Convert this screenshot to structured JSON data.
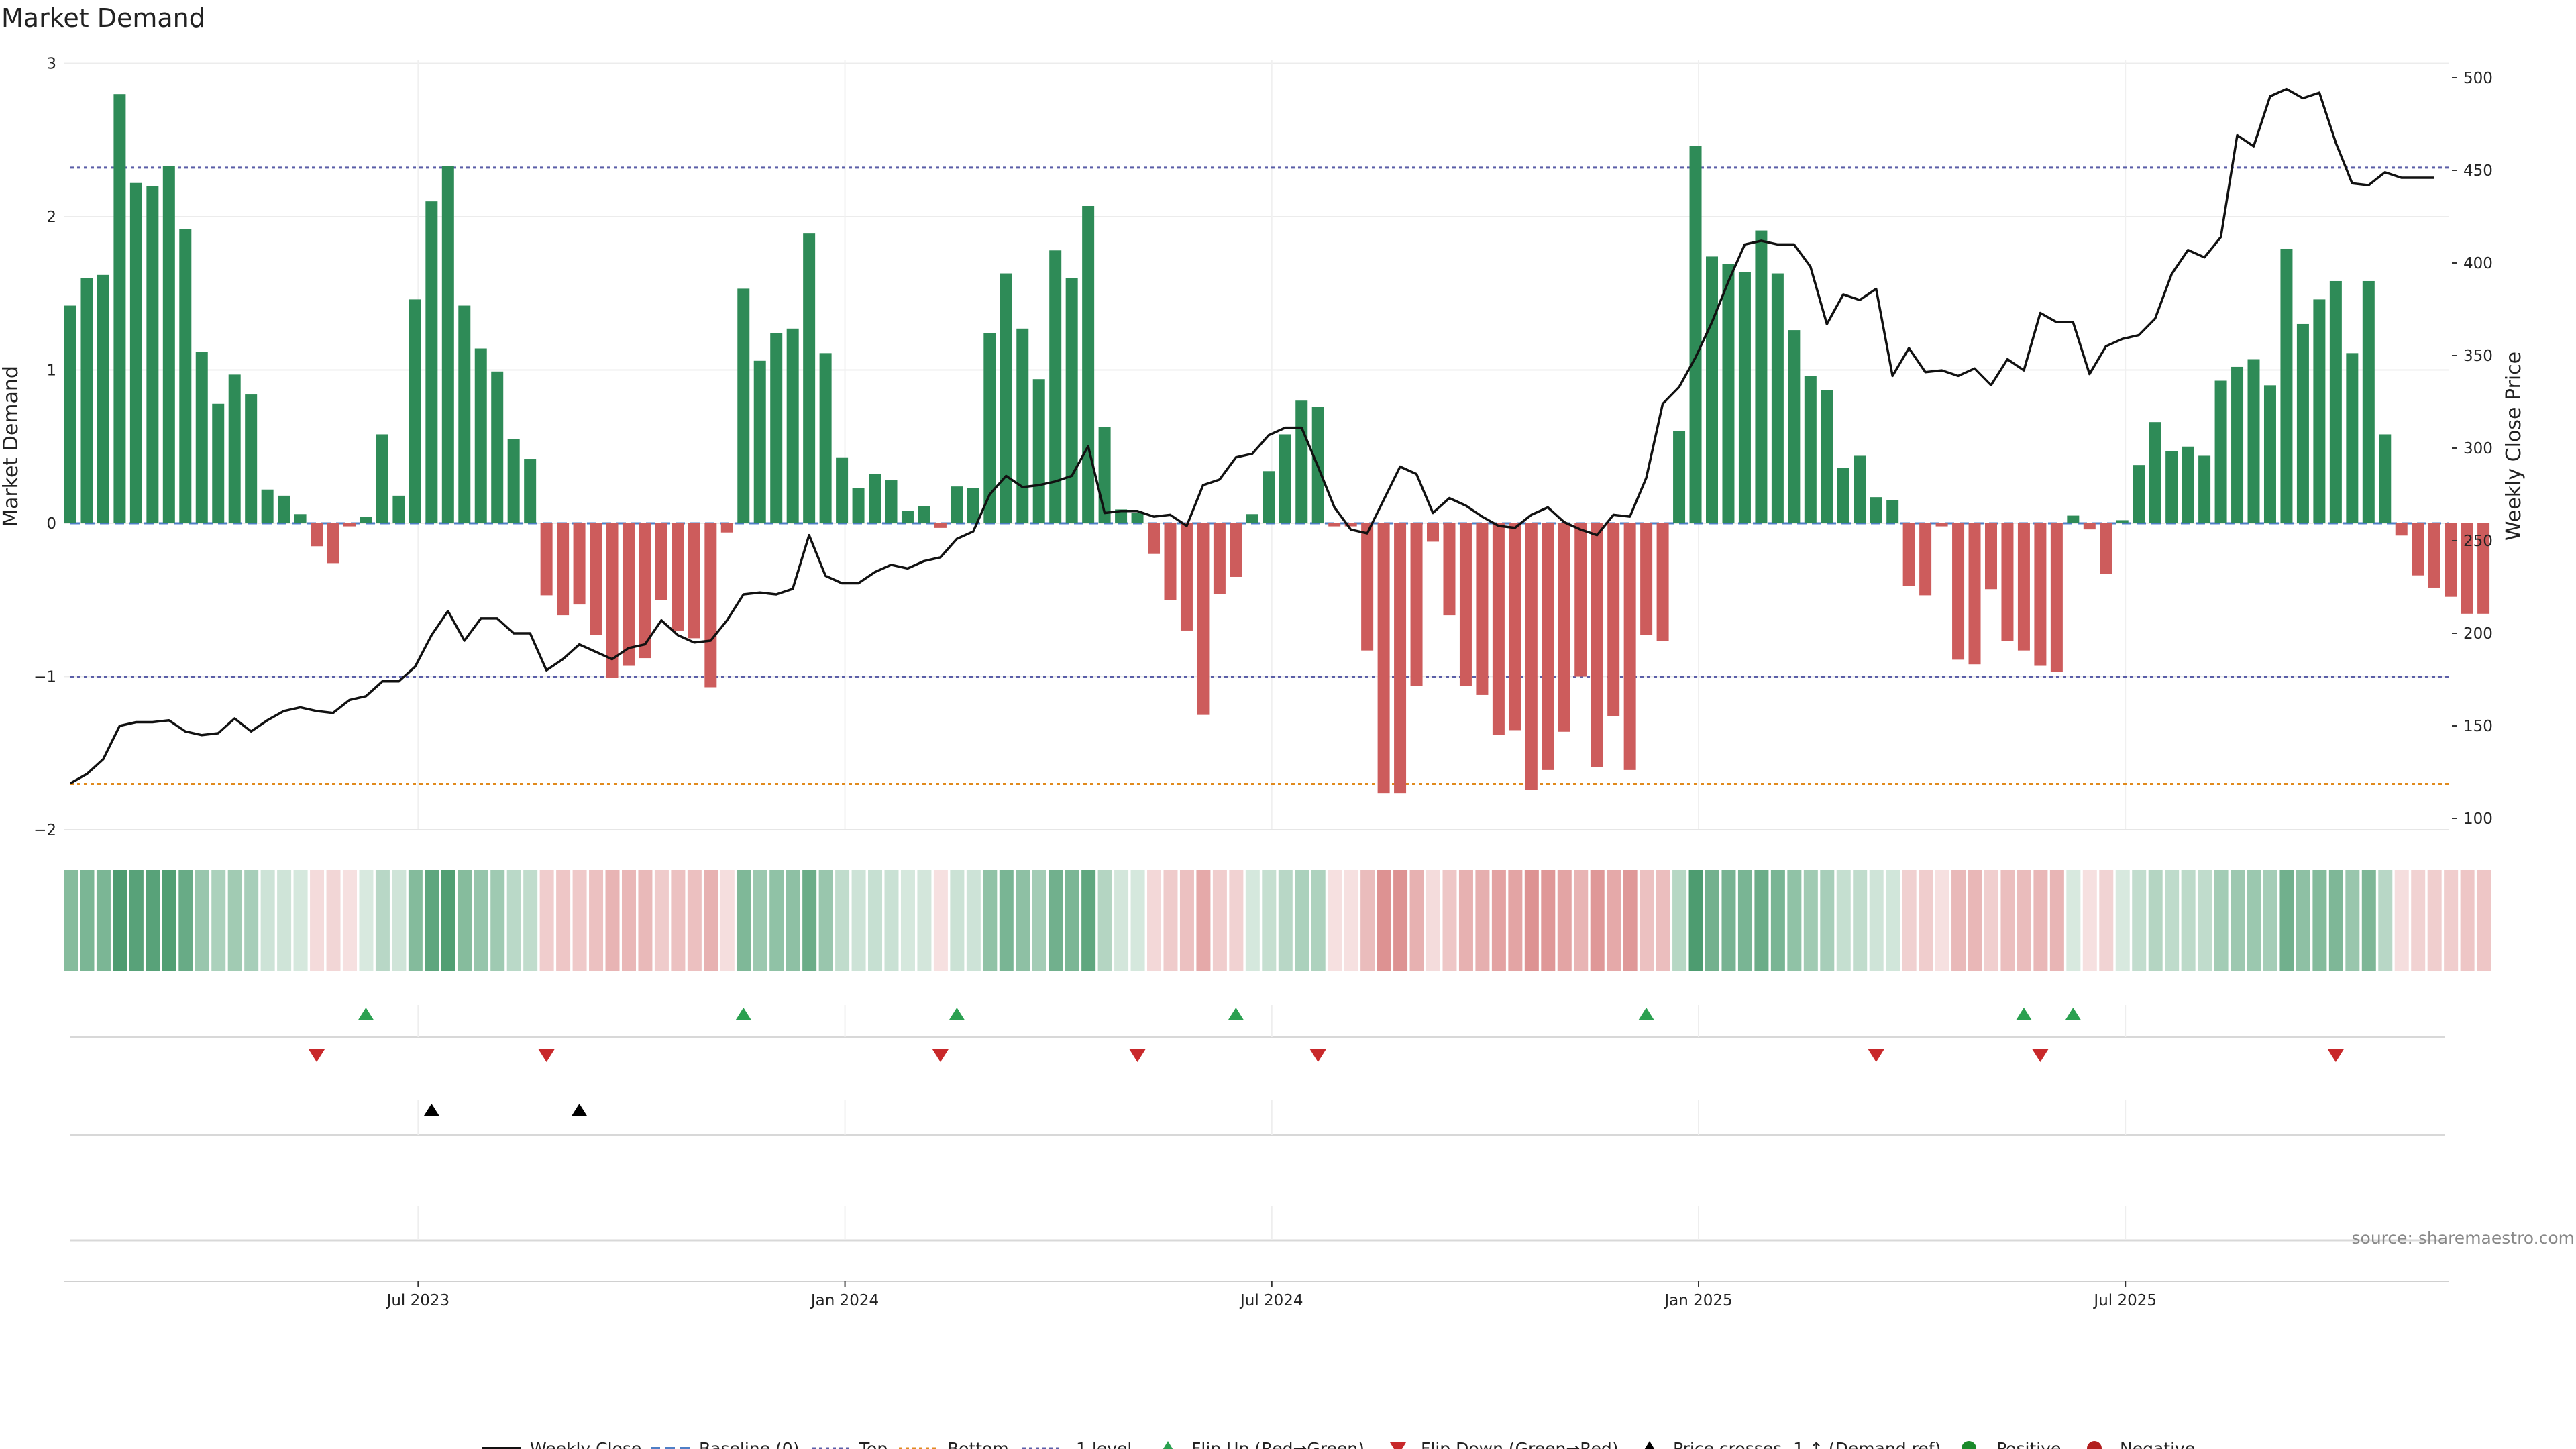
{
  "chart_data": {
    "type": "bar+line",
    "title": "Market Demand",
    "ylabel": "Market Demand",
    "y2label": "Weekly Close Price",
    "ylim": [
      -2,
      3
    ],
    "y2lim": [
      100,
      510
    ],
    "yticks": [
      "−2",
      "−1",
      "0",
      "1",
      "2",
      "3"
    ],
    "yticks_values": [
      -2,
      -1,
      0,
      1,
      2,
      3
    ],
    "y2ticks": [
      "100",
      "150",
      "200",
      "250",
      "300",
      "350",
      "400",
      "450",
      "500"
    ],
    "y2ticks_values": [
      100,
      150,
      200,
      250,
      300,
      350,
      400,
      450,
      500
    ],
    "xticks": [
      "Jul 2023",
      "Jan 2024",
      "Jul 2024",
      "Jan 2025",
      "Jul 2025"
    ],
    "xticks_week": [
      22,
      48,
      74,
      100,
      126
    ],
    "levels": {
      "top": 2.32,
      "bottom": -1.7,
      "minus_one": -1,
      "baseline": 0
    },
    "demand": [
      1.42,
      1.6,
      1.62,
      2.8,
      2.22,
      2.2,
      2.33,
      1.92,
      1.12,
      0.78,
      0.97,
      0.84,
      0.22,
      0.18,
      0.06,
      -0.15,
      -0.26,
      -0.02,
      0.04,
      0.58,
      0.18,
      1.46,
      2.1,
      2.33,
      1.42,
      1.14,
      0.99,
      0.55,
      0.42,
      -0.47,
      -0.6,
      -0.53,
      -0.73,
      -1.01,
      -0.93,
      -0.88,
      -0.5,
      -0.7,
      -0.75,
      -1.07,
      -0.06,
      1.53,
      1.06,
      1.24,
      1.27,
      1.89,
      1.11,
      0.43,
      0.23,
      0.32,
      0.28,
      0.08,
      0.11,
      -0.03,
      0.24,
      0.23,
      1.24,
      1.63,
      1.27,
      0.94,
      1.78,
      1.6,
      2.07,
      0.63,
      0.09,
      0.07,
      -0.2,
      -0.5,
      -0.7,
      -1.25,
      -0.46,
      -0.35,
      0.06,
      0.34,
      0.58,
      0.8,
      0.76,
      -0.02,
      -0.02,
      -0.83,
      -1.76,
      -1.76,
      -1.06,
      -0.12,
      -0.6,
      -1.06,
      -1.12,
      -1.38,
      -1.35,
      -1.74,
      -1.61,
      -1.36,
      -1.0,
      -1.59,
      -1.26,
      -1.61,
      -0.73,
      -0.77,
      0.6,
      2.46,
      1.74,
      1.69,
      1.64,
      1.91,
      1.63,
      1.26,
      0.96,
      0.87,
      0.36,
      0.44,
      0.17,
      0.15,
      -0.41,
      -0.47,
      -0.02,
      -0.89,
      -0.92,
      -0.43,
      -0.77,
      -0.83,
      -0.93,
      -0.97,
      0.05,
      -0.04,
      -0.33,
      0.02,
      0.38,
      0.66,
      0.47,
      0.5,
      0.44,
      0.93,
      1.02,
      1.07,
      0.9,
      1.79,
      1.3,
      1.46,
      1.58,
      1.11,
      1.58,
      0.58,
      -0.08,
      -0.34,
      -0.42,
      -0.48,
      -0.59,
      -0.59
    ],
    "close": [
      119,
      124,
      132,
      150,
      152,
      152,
      153,
      147,
      145,
      146,
      154,
      147,
      153,
      158,
      160,
      158,
      157,
      164,
      166,
      174,
      174,
      182,
      199,
      212,
      196,
      208,
      208,
      200,
      200,
      180,
      186,
      194,
      190,
      186,
      192,
      194,
      207,
      199,
      195,
      196,
      207,
      221,
      222,
      221,
      224,
      253,
      231,
      227,
      227,
      233,
      237,
      235,
      239,
      241,
      251,
      255,
      275,
      285,
      279,
      280,
      282,
      285,
      301,
      265,
      266,
      266,
      263,
      264,
      258,
      280,
      283,
      295,
      297,
      307,
      311,
      311,
      290,
      268,
      256,
      254,
      272,
      290,
      286,
      265,
      273,
      269,
      263,
      258,
      257,
      264,
      268,
      260,
      256,
      253,
      264,
      263,
      284,
      324,
      333,
      349,
      368,
      390,
      410,
      412,
      410,
      410,
      398,
      367,
      383,
      380,
      386,
      339,
      354,
      341,
      342,
      339,
      343,
      334,
      348,
      342,
      373,
      368,
      368,
      340,
      355,
      359,
      361,
      370,
      394,
      407,
      403,
      414,
      469,
      463,
      490,
      494,
      489,
      492,
      465,
      443,
      442,
      449,
      446,
      446,
      446
    ],
    "flip_up_weeks": [
      18,
      41,
      54,
      71,
      96,
      119,
      122
    ],
    "flip_down_weeks": [
      15,
      29,
      53,
      65,
      76,
      110,
      120,
      138
    ],
    "price_cross_weeks": [
      22,
      31
    ],
    "strip": {
      "positive_color": "#2e8b57",
      "negative_color": "#cd5c5c"
    },
    "colors": {
      "positive": "#2e8b57",
      "negative": "#cd5c5c",
      "line": "#111111",
      "top": "#5b5fa8",
      "bottom": "#e08a1e",
      "minus_one": "#5b5fa8",
      "baseline": "#4f7fc6",
      "flip_up": "#2aa050",
      "flip_down": "#c8282a",
      "cross": "#000000",
      "legend_pos": "#1a8a2a",
      "legend_neg": "#b21e1e"
    }
  },
  "source_text": "source: sharemaestro.com",
  "legend": {
    "weekly_close": "Weekly Close",
    "baseline": "Baseline (0)",
    "top": "Top",
    "bottom": "Bottom",
    "minus_one": "-1 level",
    "flip_up": "Flip Up (Red→Green)",
    "flip_down": "Flip Down (Green→Red)",
    "price_cross": "Price crosses -1 ↑ (Demand ref)",
    "positive": "Positive",
    "negative": "Negative"
  }
}
